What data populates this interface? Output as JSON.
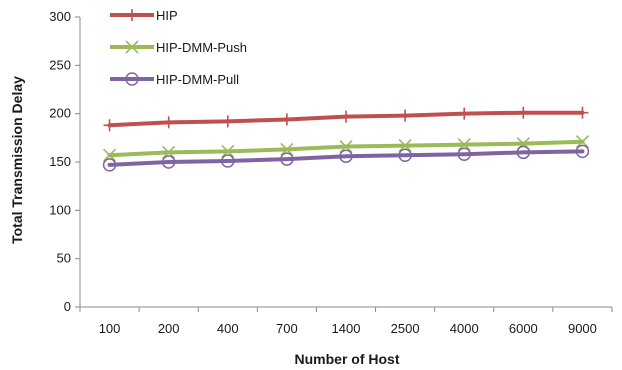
{
  "chart_data": {
    "type": "line",
    "title": "",
    "xlabel": "Number of Host",
    "ylabel": "Total Transmission Delay",
    "categories": [
      "100",
      "200",
      "400",
      "700",
      "1400",
      "2500",
      "4000",
      "6000",
      "9000"
    ],
    "ylim": [
      0,
      300
    ],
    "yticks": [
      "0",
      "50",
      "100",
      "150",
      "200",
      "250",
      "300"
    ],
    "grid": false,
    "legend_position": "top-left",
    "series": [
      {
        "name": "HIP",
        "color": "#c0504d",
        "marker": "plus",
        "values": [
          188,
          191,
          192,
          194,
          197,
          198,
          200,
          201,
          201
        ]
      },
      {
        "name": "HIP-DMM-Push",
        "color": "#9bbb59",
        "marker": "x",
        "values": [
          157,
          160,
          161,
          163,
          166,
          167,
          168,
          169,
          171
        ]
      },
      {
        "name": "HIP-DMM-Pull",
        "color": "#8064a2",
        "marker": "circle",
        "values": [
          147,
          150,
          151,
          153,
          156,
          157,
          158,
          160,
          161
        ]
      }
    ]
  }
}
